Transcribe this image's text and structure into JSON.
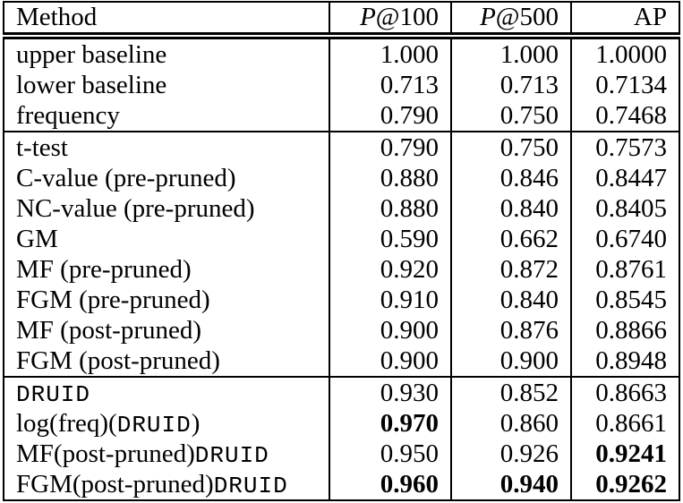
{
  "table": {
    "header": [
      {
        "text": "Method"
      },
      {
        "italic": "P",
        "text": "@100"
      },
      {
        "italic": "P",
        "text": "@500"
      },
      {
        "text": "AP"
      }
    ],
    "rows": [
      {
        "group_start": false,
        "method": [
          {
            "text": "upper baseline",
            "mono": false
          }
        ],
        "values": [
          {
            "text": "1.000",
            "bold": false
          },
          {
            "text": "1.000",
            "bold": false
          },
          {
            "text": "1.0000",
            "bold": false
          }
        ]
      },
      {
        "group_start": false,
        "method": [
          {
            "text": "lower baseline",
            "mono": false
          }
        ],
        "values": [
          {
            "text": "0.713",
            "bold": false
          },
          {
            "text": "0.713",
            "bold": false
          },
          {
            "text": "0.7134",
            "bold": false
          }
        ]
      },
      {
        "group_start": false,
        "method": [
          {
            "text": "frequency",
            "mono": false
          }
        ],
        "values": [
          {
            "text": "0.790",
            "bold": false
          },
          {
            "text": "0.750",
            "bold": false
          },
          {
            "text": "0.7468",
            "bold": false
          }
        ]
      },
      {
        "group_start": true,
        "method": [
          {
            "text": "t-test",
            "mono": false
          }
        ],
        "values": [
          {
            "text": "0.790",
            "bold": false
          },
          {
            "text": "0.750",
            "bold": false
          },
          {
            "text": "0.7573",
            "bold": false
          }
        ]
      },
      {
        "group_start": false,
        "method": [
          {
            "text": "C-value (pre-pruned)",
            "mono": false
          }
        ],
        "values": [
          {
            "text": "0.880",
            "bold": false
          },
          {
            "text": "0.846",
            "bold": false
          },
          {
            "text": "0.8447",
            "bold": false
          }
        ]
      },
      {
        "group_start": false,
        "method": [
          {
            "text": "NC-value (pre-pruned)",
            "mono": false
          }
        ],
        "values": [
          {
            "text": "0.880",
            "bold": false
          },
          {
            "text": "0.840",
            "bold": false
          },
          {
            "text": "0.8405",
            "bold": false
          }
        ]
      },
      {
        "group_start": false,
        "method": [
          {
            "text": "GM",
            "mono": false
          }
        ],
        "values": [
          {
            "text": "0.590",
            "bold": false
          },
          {
            "text": "0.662",
            "bold": false
          },
          {
            "text": "0.6740",
            "bold": false
          }
        ]
      },
      {
        "group_start": false,
        "method": [
          {
            "text": "MF (pre-pruned)",
            "mono": false
          }
        ],
        "values": [
          {
            "text": "0.920",
            "bold": false
          },
          {
            "text": "0.872",
            "bold": false
          },
          {
            "text": "0.8761",
            "bold": false
          }
        ]
      },
      {
        "group_start": false,
        "method": [
          {
            "text": "FGM (pre-pruned)",
            "mono": false
          }
        ],
        "values": [
          {
            "text": "0.910",
            "bold": false
          },
          {
            "text": "0.840",
            "bold": false
          },
          {
            "text": "0.8545",
            "bold": false
          }
        ]
      },
      {
        "group_start": false,
        "method": [
          {
            "text": "MF (post-pruned)",
            "mono": false
          }
        ],
        "values": [
          {
            "text": "0.900",
            "bold": false
          },
          {
            "text": "0.876",
            "bold": false
          },
          {
            "text": "0.8866",
            "bold": false
          }
        ]
      },
      {
        "group_start": false,
        "method": [
          {
            "text": "FGM (post-pruned)",
            "mono": false
          }
        ],
        "values": [
          {
            "text": "0.900",
            "bold": false
          },
          {
            "text": "0.900",
            "bold": false
          },
          {
            "text": "0.8948",
            "bold": false
          }
        ]
      },
      {
        "group_start": true,
        "method": [
          {
            "text": "DRUID",
            "mono": true
          }
        ],
        "values": [
          {
            "text": "0.930",
            "bold": false
          },
          {
            "text": "0.852",
            "bold": false
          },
          {
            "text": "0.8663",
            "bold": false
          }
        ]
      },
      {
        "group_start": false,
        "method": [
          {
            "text": "log(freq)(",
            "mono": false
          },
          {
            "text": "DRUID",
            "mono": true
          },
          {
            "text": ")",
            "mono": false
          }
        ],
        "values": [
          {
            "text": "0.970",
            "bold": true
          },
          {
            "text": "0.860",
            "bold": false
          },
          {
            "text": "0.8661",
            "bold": false
          }
        ]
      },
      {
        "group_start": false,
        "method": [
          {
            "text": "MF(post-pruned)",
            "mono": false
          },
          {
            "text": "DRUID",
            "mono": true
          }
        ],
        "values": [
          {
            "text": "0.950",
            "bold": false
          },
          {
            "text": "0.926",
            "bold": false
          },
          {
            "text": "0.9241",
            "bold": true
          }
        ]
      },
      {
        "group_start": false,
        "method": [
          {
            "text": "FGM(post-pruned)",
            "mono": false
          },
          {
            "text": "DRUID",
            "mono": true
          }
        ],
        "values": [
          {
            "text": "0.960",
            "bold": true
          },
          {
            "text": "0.940",
            "bold": true
          },
          {
            "text": "0.9262",
            "bold": true
          }
        ]
      }
    ]
  }
}
